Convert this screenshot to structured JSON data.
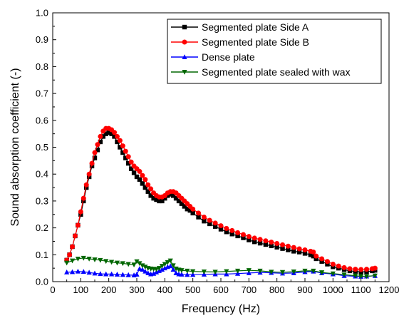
{
  "chart_data": {
    "type": "line",
    "title": "",
    "xlabel": "Frequency (Hz)",
    "ylabel": "Sound absorption coefficient (-)",
    "xlim": [
      0,
      1200
    ],
    "ylim": [
      0.0,
      1.0
    ],
    "xticks": [
      "0",
      "100",
      "200",
      "300",
      "400",
      "500",
      "600",
      "700",
      "800",
      "900",
      "1000",
      "1100",
      "1200"
    ],
    "yticks": [
      "0.0",
      "0.1",
      "0.2",
      "0.3",
      "0.4",
      "0.5",
      "0.6",
      "0.7",
      "0.8",
      "0.9",
      "1.0"
    ],
    "grid": false,
    "legend_position": "top-right",
    "series": [
      {
        "name": "Segmented plate Side A",
        "color": "#000000",
        "marker": "square",
        "x": [
          50,
          60,
          70,
          80,
          90,
          100,
          110,
          120,
          130,
          140,
          150,
          160,
          170,
          180,
          190,
          200,
          210,
          220,
          230,
          240,
          250,
          260,
          270,
          280,
          290,
          300,
          310,
          320,
          330,
          340,
          350,
          360,
          370,
          380,
          390,
          400,
          410,
          420,
          430,
          440,
          450,
          460,
          470,
          480,
          490,
          500,
          520,
          540,
          560,
          580,
          600,
          620,
          640,
          660,
          680,
          700,
          720,
          740,
          760,
          780,
          800,
          820,
          840,
          860,
          880,
          900,
          920,
          930,
          940,
          960,
          980,
          1000,
          1020,
          1040,
          1060,
          1080,
          1100,
          1120,
          1140,
          1150
        ],
        "values": [
          0.08,
          0.1,
          0.13,
          0.17,
          0.21,
          0.25,
          0.3,
          0.35,
          0.39,
          0.43,
          0.46,
          0.49,
          0.52,
          0.54,
          0.55,
          0.555,
          0.55,
          0.54,
          0.52,
          0.5,
          0.48,
          0.46,
          0.44,
          0.42,
          0.405,
          0.39,
          0.38,
          0.365,
          0.35,
          0.335,
          0.32,
          0.31,
          0.305,
          0.3,
          0.3,
          0.31,
          0.32,
          0.325,
          0.32,
          0.31,
          0.3,
          0.29,
          0.28,
          0.27,
          0.265,
          0.255,
          0.24,
          0.225,
          0.215,
          0.205,
          0.195,
          0.185,
          0.177,
          0.17,
          0.163,
          0.155,
          0.148,
          0.143,
          0.138,
          0.133,
          0.128,
          0.123,
          0.118,
          0.113,
          0.11,
          0.105,
          0.1,
          0.095,
          0.085,
          0.075,
          0.065,
          0.055,
          0.05,
          0.045,
          0.04,
          0.038,
          0.036,
          0.037,
          0.04,
          0.042
        ]
      },
      {
        "name": "Segmented plate Side B",
        "color": "#ff0000",
        "marker": "circle",
        "x": [
          50,
          60,
          70,
          80,
          90,
          100,
          110,
          120,
          130,
          140,
          150,
          160,
          170,
          180,
          190,
          200,
          210,
          220,
          230,
          240,
          250,
          260,
          270,
          280,
          290,
          300,
          310,
          320,
          330,
          340,
          350,
          360,
          370,
          380,
          390,
          400,
          410,
          420,
          430,
          440,
          450,
          460,
          470,
          480,
          490,
          500,
          520,
          540,
          560,
          580,
          600,
          620,
          640,
          660,
          680,
          700,
          720,
          740,
          760,
          780,
          800,
          820,
          840,
          860,
          880,
          900,
          920,
          930,
          940,
          960,
          980,
          1000,
          1020,
          1040,
          1060,
          1080,
          1100,
          1120,
          1140,
          1150
        ],
        "values": [
          0.08,
          0.1,
          0.13,
          0.17,
          0.21,
          0.26,
          0.31,
          0.36,
          0.4,
          0.44,
          0.48,
          0.51,
          0.54,
          0.56,
          0.57,
          0.57,
          0.565,
          0.555,
          0.54,
          0.525,
          0.505,
          0.485,
          0.465,
          0.445,
          0.43,
          0.42,
          0.41,
          0.395,
          0.38,
          0.36,
          0.345,
          0.33,
          0.32,
          0.315,
          0.315,
          0.32,
          0.33,
          0.335,
          0.335,
          0.33,
          0.32,
          0.31,
          0.3,
          0.29,
          0.28,
          0.27,
          0.255,
          0.24,
          0.228,
          0.218,
          0.208,
          0.198,
          0.19,
          0.182,
          0.175,
          0.168,
          0.162,
          0.157,
          0.152,
          0.147,
          0.142,
          0.137,
          0.132,
          0.127,
          0.122,
          0.118,
          0.113,
          0.11,
          0.095,
          0.085,
          0.075,
          0.065,
          0.058,
          0.052,
          0.048,
          0.046,
          0.045,
          0.046,
          0.048,
          0.05
        ]
      },
      {
        "name": "Dense plate",
        "color": "#0000ff",
        "marker": "triangle-up",
        "x": [
          50,
          70,
          90,
          110,
          130,
          150,
          170,
          190,
          210,
          230,
          250,
          270,
          290,
          300,
          310,
          320,
          330,
          340,
          350,
          360,
          370,
          380,
          390,
          400,
          410,
          420,
          430,
          440,
          450,
          460,
          480,
          500,
          540,
          580,
          620,
          660,
          700,
          740,
          780,
          820,
          860,
          900,
          930,
          960,
          1000,
          1040,
          1080,
          1100,
          1120,
          1150
        ],
        "values": [
          0.035,
          0.036,
          0.038,
          0.037,
          0.034,
          0.031,
          0.029,
          0.028,
          0.028,
          0.027,
          0.026,
          0.025,
          0.024,
          0.027,
          0.048,
          0.045,
          0.038,
          0.032,
          0.028,
          0.03,
          0.035,
          0.04,
          0.045,
          0.05,
          0.055,
          0.058,
          0.045,
          0.032,
          0.028,
          0.027,
          0.026,
          0.026,
          0.027,
          0.028,
          0.028,
          0.03,
          0.032,
          0.034,
          0.033,
          0.031,
          0.032,
          0.036,
          0.038,
          0.032,
          0.028,
          0.022,
          0.02,
          0.019,
          0.02,
          0.022
        ]
      },
      {
        "name": "Segmented plate sealed with wax",
        "color": "#006600",
        "marker": "triangle-down",
        "x": [
          50,
          70,
          90,
          110,
          130,
          150,
          170,
          190,
          210,
          230,
          250,
          270,
          290,
          300,
          310,
          320,
          330,
          340,
          350,
          360,
          370,
          380,
          390,
          400,
          410,
          420,
          430,
          440,
          450,
          460,
          480,
          500,
          540,
          580,
          620,
          660,
          700,
          740,
          780,
          820,
          860,
          900,
          930,
          960,
          1000,
          1040,
          1080,
          1100,
          1120,
          1150
        ],
        "values": [
          0.07,
          0.078,
          0.085,
          0.088,
          0.085,
          0.082,
          0.08,
          0.076,
          0.073,
          0.07,
          0.068,
          0.065,
          0.063,
          0.075,
          0.068,
          0.06,
          0.055,
          0.05,
          0.048,
          0.047,
          0.046,
          0.05,
          0.058,
          0.065,
          0.072,
          0.078,
          0.06,
          0.048,
          0.044,
          0.042,
          0.04,
          0.038,
          0.037,
          0.036,
          0.038,
          0.04,
          0.042,
          0.04,
          0.036,
          0.035,
          0.037,
          0.04,
          0.04,
          0.034,
          0.03,
          0.026,
          0.022,
          0.02,
          0.02,
          0.022
        ]
      }
    ]
  }
}
